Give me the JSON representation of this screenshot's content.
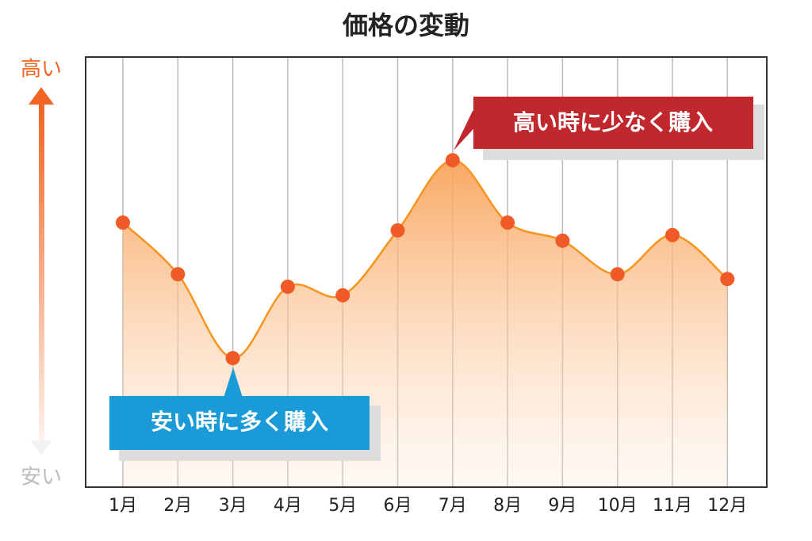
{
  "chart_data": {
    "type": "area",
    "title": "価格の変動",
    "y_top_label": "高い",
    "y_bottom_label": "安い",
    "categories": [
      "1月",
      "2月",
      "3月",
      "4月",
      "5月",
      "6月",
      "7月",
      "8月",
      "9月",
      "10月",
      "11月",
      "12月"
    ],
    "values": [
      61.5,
      49.5,
      30,
      46.6,
      44.6,
      59.7,
      76,
      61.5,
      57.3,
      49.5,
      58.6,
      48.4
    ],
    "ylim": [
      0,
      100
    ],
    "color": "#f7941d",
    "marker_color": "#ef5a28",
    "grid": true,
    "annotations": [
      "高い時に少なく購入",
      "安い時に多く購入"
    ]
  }
}
